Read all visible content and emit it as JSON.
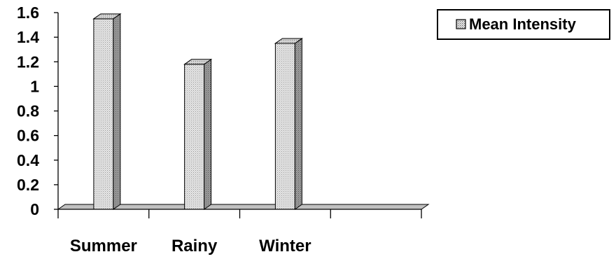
{
  "chart_data": {
    "type": "bar",
    "style": "3d",
    "categories": [
      "Summer",
      "Rainy",
      "Winter",
      ""
    ],
    "series": [
      {
        "name": "Mean Intensity",
        "values": [
          1.55,
          1.18,
          1.35,
          null
        ]
      }
    ],
    "ylim": [
      0,
      1.6
    ],
    "yticks": [
      "0",
      "0.2",
      "0.4",
      "0.6",
      "0.8",
      "1",
      "1.2",
      "1.4",
      "1.6"
    ],
    "grid": false,
    "legend_position": "top-right",
    "colors": {
      "bar_front": "#dcdcdc",
      "bar_side": "#8c8c8c",
      "bar_top": "#c4c4c4",
      "floor": "#c0c0c0",
      "outline": "#000000"
    }
  }
}
